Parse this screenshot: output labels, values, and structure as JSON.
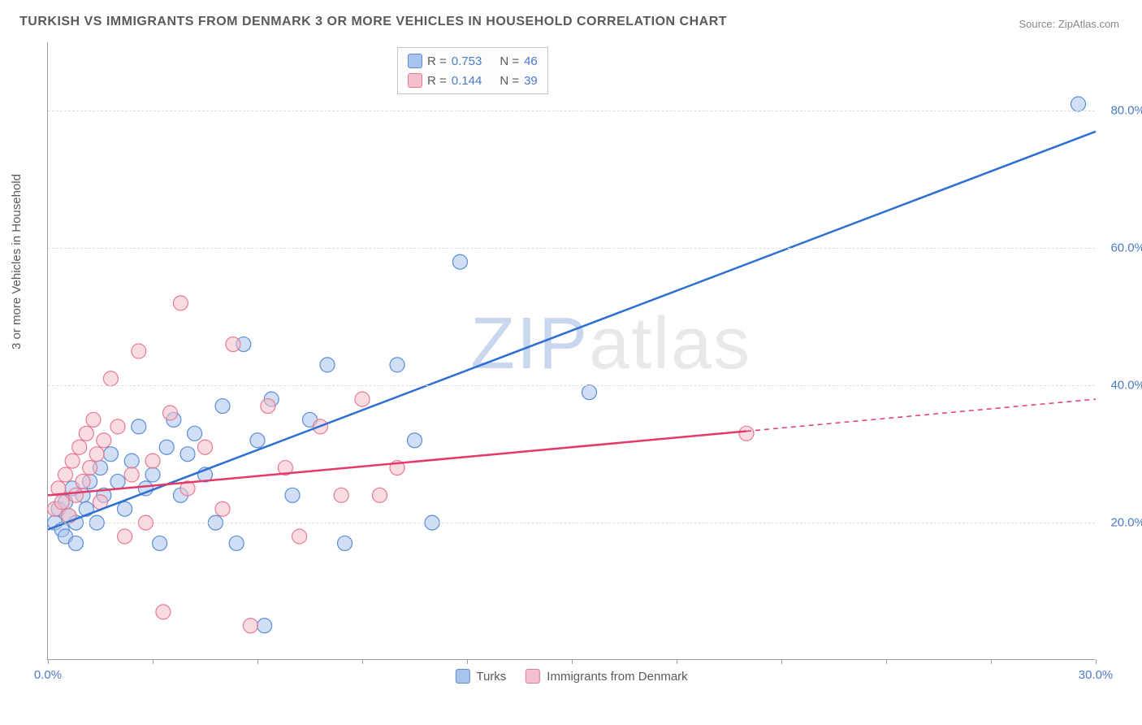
{
  "title": "TURKISH VS IMMIGRANTS FROM DENMARK 3 OR MORE VEHICLES IN HOUSEHOLD CORRELATION CHART",
  "source": "Source: ZipAtlas.com",
  "ylabel": "3 or more Vehicles in Household",
  "watermark": {
    "part1": "ZIP",
    "part2": "atlas"
  },
  "chart": {
    "type": "scatter-with-trend",
    "xlim": [
      0,
      30
    ],
    "ylim": [
      0,
      90
    ],
    "x_ticks": [
      0,
      3,
      6,
      9,
      12,
      15,
      18,
      21,
      24,
      27,
      30
    ],
    "x_tick_labels": {
      "0": "0.0%",
      "30": "30.0%"
    },
    "y_gridlines": [
      20,
      40,
      60,
      80
    ],
    "y_tick_labels": {
      "20": "20.0%",
      "40": "40.0%",
      "60": "60.0%",
      "80": "80.0%"
    },
    "background_color": "#ffffff",
    "grid_color": "#dddddd",
    "axis_color": "#9aa0a6",
    "marker_radius": 9,
    "marker_opacity": 0.55,
    "line_width": 2.5,
    "series": [
      {
        "name": "Turks",
        "color_fill": "#a9c4ec",
        "color_stroke": "#5b8dd6",
        "line_color": "#2e6fd1",
        "R": "0.753",
        "N": "46",
        "trend": {
          "x1": 0,
          "y1": 19,
          "x2": 30,
          "y2": 77,
          "dashed_from_x": null
        },
        "points": [
          [
            0.2,
            20
          ],
          [
            0.3,
            22
          ],
          [
            0.4,
            19
          ],
          [
            0.5,
            23
          ],
          [
            0.5,
            18
          ],
          [
            0.6,
            21
          ],
          [
            0.7,
            25
          ],
          [
            0.8,
            20
          ],
          [
            0.8,
            17
          ],
          [
            1.0,
            24
          ],
          [
            1.1,
            22
          ],
          [
            1.2,
            26
          ],
          [
            1.4,
            20
          ],
          [
            1.5,
            28
          ],
          [
            1.6,
            24
          ],
          [
            1.8,
            30
          ],
          [
            2.0,
            26
          ],
          [
            2.2,
            22
          ],
          [
            2.4,
            29
          ],
          [
            2.6,
            34
          ],
          [
            2.8,
            25
          ],
          [
            3.0,
            27
          ],
          [
            3.2,
            17
          ],
          [
            3.4,
            31
          ],
          [
            3.6,
            35
          ],
          [
            3.8,
            24
          ],
          [
            4.0,
            30
          ],
          [
            4.2,
            33
          ],
          [
            4.5,
            27
          ],
          [
            4.8,
            20
          ],
          [
            5.0,
            37
          ],
          [
            5.4,
            17
          ],
          [
            5.6,
            46
          ],
          [
            6.0,
            32
          ],
          [
            6.2,
            5
          ],
          [
            6.4,
            38
          ],
          [
            7.0,
            24
          ],
          [
            7.5,
            35
          ],
          [
            8.0,
            43
          ],
          [
            8.5,
            17
          ],
          [
            10.0,
            43
          ],
          [
            10.5,
            32
          ],
          [
            11.0,
            20
          ],
          [
            11.8,
            58
          ],
          [
            15.5,
            39
          ],
          [
            29.5,
            81
          ]
        ]
      },
      {
        "name": "Immigrants from Denmark",
        "color_fill": "#f4c0cb",
        "color_stroke": "#e77a93",
        "line_color": "#e23b69",
        "R": "0.144",
        "N": "39",
        "trend": {
          "x1": 0,
          "y1": 24,
          "x2": 30,
          "y2": 38,
          "dashed_from_x": 20
        },
        "points": [
          [
            0.2,
            22
          ],
          [
            0.3,
            25
          ],
          [
            0.4,
            23
          ],
          [
            0.5,
            27
          ],
          [
            0.6,
            21
          ],
          [
            0.7,
            29
          ],
          [
            0.8,
            24
          ],
          [
            0.9,
            31
          ],
          [
            1.0,
            26
          ],
          [
            1.1,
            33
          ],
          [
            1.2,
            28
          ],
          [
            1.3,
            35
          ],
          [
            1.4,
            30
          ],
          [
            1.5,
            23
          ],
          [
            1.6,
            32
          ],
          [
            1.8,
            41
          ],
          [
            2.0,
            34
          ],
          [
            2.2,
            18
          ],
          [
            2.4,
            27
          ],
          [
            2.6,
            45
          ],
          [
            2.8,
            20
          ],
          [
            3.0,
            29
          ],
          [
            3.3,
            7
          ],
          [
            3.5,
            36
          ],
          [
            3.8,
            52
          ],
          [
            4.0,
            25
          ],
          [
            4.5,
            31
          ],
          [
            5.0,
            22
          ],
          [
            5.3,
            46
          ],
          [
            5.8,
            5
          ],
          [
            6.3,
            37
          ],
          [
            6.8,
            28
          ],
          [
            7.2,
            18
          ],
          [
            7.8,
            34
          ],
          [
            8.4,
            24
          ],
          [
            9.0,
            38
          ],
          [
            9.5,
            24
          ],
          [
            10.0,
            28
          ],
          [
            20.0,
            33
          ]
        ]
      }
    ]
  },
  "legend_top": {
    "rows": [
      {
        "swatch": 0,
        "R_label": "R =",
        "R_val": "0.753",
        "N_label": "N =",
        "N_val": "46"
      },
      {
        "swatch": 1,
        "R_label": "R =",
        "R_val": "0.144",
        "N_label": "N =",
        "N_val": "39"
      }
    ]
  },
  "legend_bottom": [
    {
      "swatch": 0,
      "label": "Turks"
    },
    {
      "swatch": 1,
      "label": "Immigrants from Denmark"
    }
  ]
}
